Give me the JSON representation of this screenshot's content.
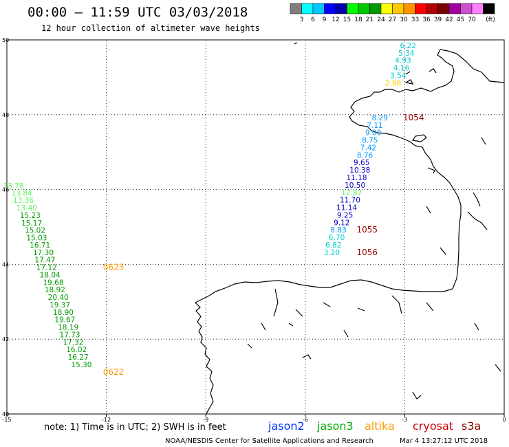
{
  "header": {
    "title": "00:00 – 11:59 UTC 03/03/2018",
    "subtitle": "12 hour collection of altimeter wave heights"
  },
  "colorbar": {
    "unit": "(ft)",
    "colors": [
      "#7f7f7f",
      "#00ffff",
      "#00c8ff",
      "#0000ff",
      "#0000aa",
      "#00ff00",
      "#00c800",
      "#009600",
      "#ffff00",
      "#ffc800",
      "#ff9600",
      "#ff0000",
      "#b40000",
      "#780000",
      "#a000a0",
      "#d050d0",
      "#ff80ff",
      "#000000"
    ],
    "labels": [
      "3",
      "6",
      "9",
      "12",
      "15",
      "18",
      "21",
      "24",
      "27",
      "30",
      "33",
      "36",
      "39",
      "42",
      "45",
      "70"
    ]
  },
  "map": {
    "lon_ticks": [
      "-15",
      "-12",
      "-9",
      "-6",
      "-3",
      "0"
    ],
    "lat_ticks": [
      "50",
      "48",
      "46",
      "44",
      "42",
      "40"
    ]
  },
  "western_track": {
    "points": [
      {
        "lon": -14.8,
        "lat": 46.03,
        "swh": "13.78",
        "color": "#66ee66"
      },
      {
        "lon": -14.55,
        "lat": 45.84,
        "swh": "13.84",
        "color": "#66ee66"
      },
      {
        "lon": -14.5,
        "lat": 45.64,
        "swh": "13.36",
        "color": "#66ee66"
      },
      {
        "lon": -14.4,
        "lat": 45.44,
        "swh": "13.40",
        "color": "#66ee66"
      },
      {
        "lon": -14.3,
        "lat": 45.24,
        "swh": "15.23",
        "color": "#009900"
      },
      {
        "lon": -14.25,
        "lat": 45.04,
        "swh": "15.17",
        "color": "#009900"
      },
      {
        "lon": -14.15,
        "lat": 44.84,
        "swh": "15.02",
        "color": "#009900"
      },
      {
        "lon": -14.1,
        "lat": 44.64,
        "swh": "15.03",
        "color": "#009900"
      },
      {
        "lon": -14.0,
        "lat": 44.45,
        "swh": "16.71",
        "color": "#009900"
      },
      {
        "lon": -13.9,
        "lat": 44.25,
        "swh": "17.30",
        "color": "#009900"
      },
      {
        "lon": -13.85,
        "lat": 44.05,
        "swh": "17.47",
        "color": "#009900"
      },
      {
        "lon": -13.8,
        "lat": 43.85,
        "swh": "17.12",
        "color": "#009900"
      },
      {
        "lon": -13.7,
        "lat": 43.65,
        "swh": "18.04",
        "color": "#009900"
      },
      {
        "lon": -13.6,
        "lat": 43.45,
        "swh": "19.68",
        "color": "#009900"
      },
      {
        "lon": -13.55,
        "lat": 43.25,
        "swh": "18.92",
        "color": "#009900"
      },
      {
        "lon": -13.45,
        "lat": 43.05,
        "swh": "20.40",
        "color": "#009900"
      },
      {
        "lon": -13.4,
        "lat": 42.85,
        "swh": "19.37",
        "color": "#009900"
      },
      {
        "lon": -13.3,
        "lat": 42.65,
        "swh": "18.90",
        "color": "#009900"
      },
      {
        "lon": -13.25,
        "lat": 42.45,
        "swh": "19.67",
        "color": "#009900"
      },
      {
        "lon": -13.15,
        "lat": 42.25,
        "swh": "18.19",
        "color": "#009900"
      },
      {
        "lon": -13.1,
        "lat": 42.05,
        "swh": "17.73",
        "color": "#009900"
      },
      {
        "lon": -13.0,
        "lat": 41.85,
        "swh": "17.32",
        "color": "#009900"
      },
      {
        "lon": -12.9,
        "lat": 41.65,
        "swh": "16.02",
        "color": "#009900"
      },
      {
        "lon": -12.85,
        "lat": 41.45,
        "swh": "16.27",
        "color": "#009900"
      },
      {
        "lon": -12.75,
        "lat": 41.25,
        "swh": "15.30",
        "color": "#009900"
      }
    ],
    "times": [
      {
        "lon": -12.1,
        "lat": 43.85,
        "label": "0623",
        "color": "#ff9900"
      },
      {
        "lon": -12.1,
        "lat": 41.05,
        "label": "0622",
        "color": "#ff9900"
      }
    ]
  },
  "eastern_track": {
    "points": [
      {
        "lon": -2.9,
        "lat": 49.78,
        "swh": "6.22",
        "color": "#00cccc"
      },
      {
        "lon": -2.95,
        "lat": 49.58,
        "swh": "5.34",
        "color": "#00cccc"
      },
      {
        "lon": -3.05,
        "lat": 49.38,
        "swh": "4.93",
        "color": "#00cccc"
      },
      {
        "lon": -3.1,
        "lat": 49.18,
        "swh": "4.16",
        "color": "#00cccc"
      },
      {
        "lon": -3.2,
        "lat": 48.98,
        "swh": "3.54",
        "color": "#00cccc"
      },
      {
        "lon": -3.35,
        "lat": 48.78,
        "swh": "2.98",
        "color": "#ffcc00"
      },
      {
        "lon": -3.75,
        "lat": 47.85,
        "swh": "8.29",
        "color": "#0099ff"
      },
      {
        "lon": -3.9,
        "lat": 47.65,
        "swh": "7.11",
        "color": "#0099ff"
      },
      {
        "lon": -3.95,
        "lat": 47.45,
        "swh": "9.00",
        "color": "#0099ff"
      },
      {
        "lon": -4.05,
        "lat": 47.25,
        "swh": "8.75",
        "color": "#0099ff"
      },
      {
        "lon": -4.1,
        "lat": 47.05,
        "swh": "7.42",
        "color": "#0099ff"
      },
      {
        "lon": -4.2,
        "lat": 46.85,
        "swh": "8.76",
        "color": "#0099ff"
      },
      {
        "lon": -4.3,
        "lat": 46.65,
        "swh": "9.65",
        "color": "#0000cc"
      },
      {
        "lon": -4.35,
        "lat": 46.45,
        "swh": "10.38",
        "color": "#0000cc"
      },
      {
        "lon": -4.45,
        "lat": 46.25,
        "swh": "11.18",
        "color": "#0000cc"
      },
      {
        "lon": -4.5,
        "lat": 46.05,
        "swh": "10.50",
        "color": "#0000cc"
      },
      {
        "lon": -4.6,
        "lat": 45.85,
        "swh": "12.87",
        "color": "#66ee66"
      },
      {
        "lon": -4.65,
        "lat": 45.65,
        "swh": "11.70",
        "color": "#0000cc"
      },
      {
        "lon": -4.75,
        "lat": 45.45,
        "swh": "11.14",
        "color": "#0000cc"
      },
      {
        "lon": -4.8,
        "lat": 45.25,
        "swh": "9.25",
        "color": "#0000cc"
      },
      {
        "lon": -4.9,
        "lat": 45.05,
        "swh": "9.12",
        "color": "#0000cc"
      },
      {
        "lon": -5.0,
        "lat": 44.85,
        "swh": "8.83",
        "color": "#0099ff"
      },
      {
        "lon": -5.05,
        "lat": 44.65,
        "swh": "6.70",
        "color": "#00cccc"
      },
      {
        "lon": -5.15,
        "lat": 44.45,
        "swh": "6.82",
        "color": "#00cccc"
      },
      {
        "lon": -5.2,
        "lat": 44.25,
        "swh": "3.20",
        "color": "#00cccc"
      }
    ],
    "times": [
      {
        "lon": -3.05,
        "lat": 47.85,
        "label": "1054",
        "color": "#990000"
      },
      {
        "lon": -4.45,
        "lat": 44.85,
        "label": "1055",
        "color": "#990000"
      },
      {
        "lon": -4.45,
        "lat": 44.25,
        "label": "1056",
        "color": "#990000"
      }
    ]
  },
  "footer": {
    "note": "note: 1) Time is in UTC; 2) SWH is in feet",
    "satellites": [
      {
        "name": "jason2",
        "color": "#0033ff"
      },
      {
        "name": "jason3",
        "color": "#00aa00"
      },
      {
        "name": "altika",
        "color": "#ff9900"
      },
      {
        "name": "cryosat",
        "color": "#cc0000"
      },
      {
        "name": "s3a",
        "color": "#880000"
      }
    ],
    "credit": "NOAA/NESDIS Center for Satellite Applications and Research",
    "timestamp": "Mar  4 13:27:12 UTC 2018"
  }
}
